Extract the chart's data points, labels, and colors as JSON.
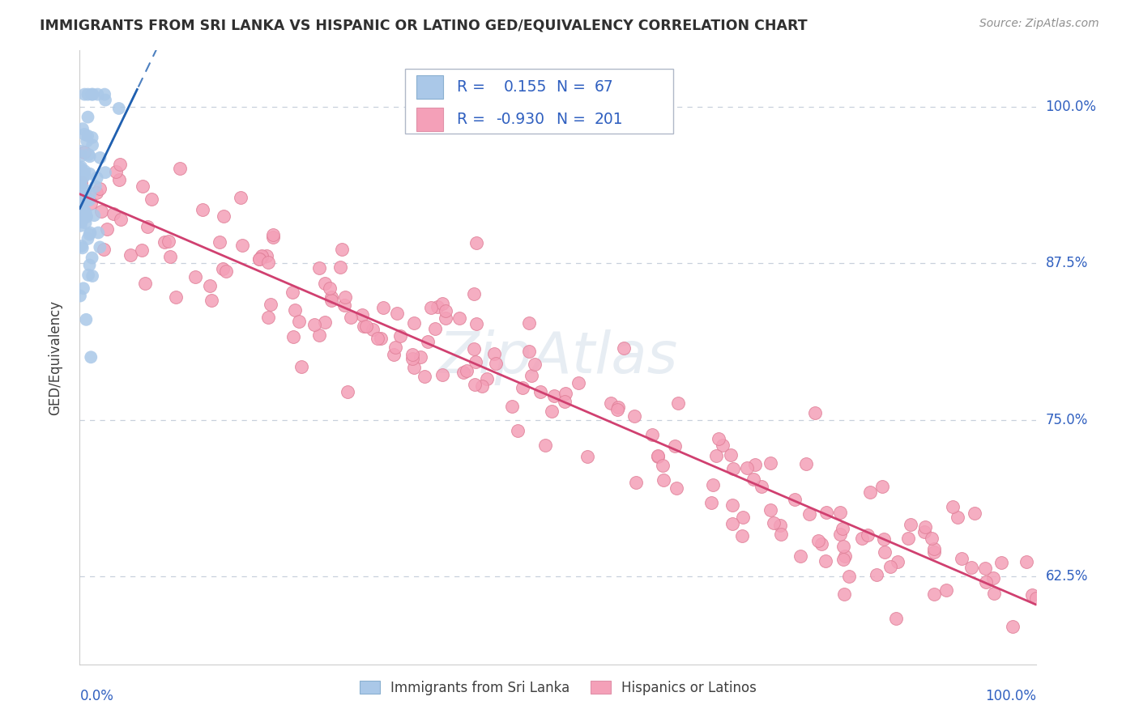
{
  "title": "IMMIGRANTS FROM SRI LANKA VS HISPANIC OR LATINO GED/EQUIVALENCY CORRELATION CHART",
  "source_text": "Source: ZipAtlas.com",
  "ylabel": "GED/Equivalency",
  "y_tick_labels": [
    "62.5%",
    "75.0%",
    "87.5%",
    "100.0%"
  ],
  "y_tick_values": [
    0.625,
    0.75,
    0.875,
    1.0
  ],
  "x_lim": [
    0.0,
    1.0
  ],
  "y_lim": [
    0.555,
    1.045
  ],
  "blue_color": "#aac8e8",
  "blue_edge": "none",
  "blue_line_color": "#2060b0",
  "blue_line_dash": true,
  "pink_color": "#f4a0b8",
  "pink_edge": "#e08098",
  "pink_line_color": "#d04070",
  "grid_color": "#c8d0dc",
  "background_color": "#ffffff",
  "title_color": "#303030",
  "source_color": "#909090",
  "legend_text_color": "#3060c0",
  "axis_label_color": "#3060c0",
  "watermark_color": "#d0dce8",
  "legend_r1": "R =  0.155",
  "legend_n1": "N =  67",
  "legend_r2": "R = -0.930",
  "legend_n2": "N = 201",
  "sri_lanka_R": 0.155,
  "sri_lanka_N": 67,
  "hispanic_R": -0.93,
  "hispanic_N": 201
}
